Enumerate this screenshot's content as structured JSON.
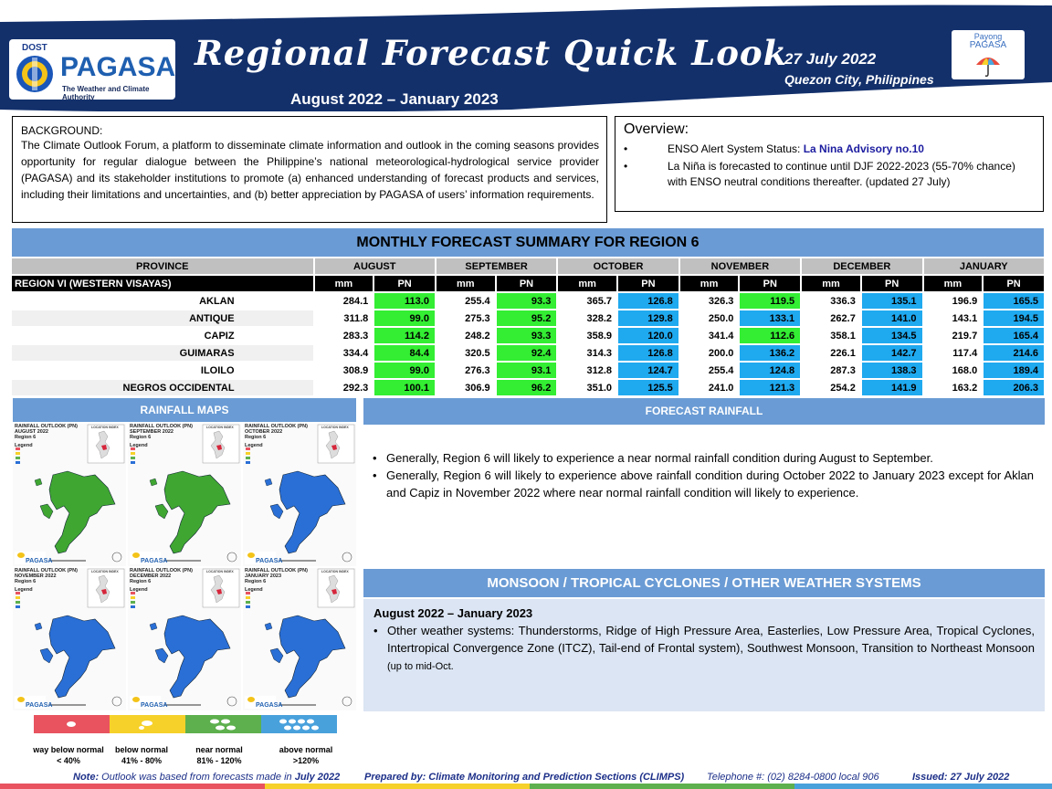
{
  "header": {
    "agency_small": "DOST",
    "agency_name": "PAGASA",
    "agency_tagline": "The Weather and Climate Authority",
    "title": "Regional Forecast Quick Look",
    "period": "August 2022 – January 2023",
    "date": "27 July 2022",
    "place": "Quezon City, Philippines",
    "partner_line1": "Payong",
    "partner_line2": "PAGASA",
    "emblem_icon": "pagasa-emblem-icon",
    "partner_icon": "umbrella-icon",
    "navy_color": "#13306b"
  },
  "background": {
    "heading": "BACKGROUND:",
    "text": "The Climate Outlook Forum, a platform to disseminate climate information and outlook in the coming seasons provides opportunity for regular dialogue between the Philippine’s national meteorological-hydrological service provider (PAGASA) and its stakeholder institutions to promote (a) enhanced understanding of forecast products and services, including their limitations and uncertainties, and (b) better appreciation by PAGASA of users’ information requirements."
  },
  "overview": {
    "heading": "Overview:",
    "item1_prefix": "ENSO Alert System Status: ",
    "item1_highlight": "La Nina Advisory no.10",
    "item2": "La Niña is forecasted to continue until DJF 2022-2023  (55-70% chance) with ENSO neutral conditions thereafter. (updated 27 July)"
  },
  "summary": {
    "title": "MONTHLY FORECAST SUMMARY FOR REGION 6",
    "province_header": "PROVINCE",
    "region_label": "REGION VI (WESTERN VISAYAS)",
    "mm_label": "mm",
    "pn_label": "PN",
    "months": [
      "AUGUST",
      "SEPTEMBER",
      "OCTOBER",
      "NOVEMBER",
      "DECEMBER",
      "JANUARY"
    ],
    "rows": [
      {
        "province": "AKLAN",
        "values": [
          "284.1",
          "113.0",
          "255.4",
          "93.3",
          "365.7",
          "126.8",
          "326.3",
          "119.5",
          "336.3",
          "135.1",
          "196.9",
          "165.5"
        ]
      },
      {
        "province": "ANTIQUE",
        "values": [
          "311.8",
          "99.0",
          "275.3",
          "95.2",
          "328.2",
          "129.8",
          "250.0",
          "133.1",
          "262.7",
          "141.0",
          "143.1",
          "194.5"
        ]
      },
      {
        "province": "CAPIZ",
        "values": [
          "283.3",
          "114.2",
          "248.2",
          "93.3",
          "358.9",
          "120.0",
          "341.4",
          "112.6",
          "358.1",
          "134.5",
          "219.7",
          "165.4"
        ]
      },
      {
        "province": "GUIMARAS",
        "values": [
          "334.4",
          "84.4",
          "320.5",
          "92.4",
          "314.3",
          "126.8",
          "200.0",
          "136.2",
          "226.1",
          "142.7",
          "117.4",
          "214.6"
        ]
      },
      {
        "province": "ILOILO",
        "values": [
          "308.9",
          "99.0",
          "276.3",
          "93.1",
          "312.8",
          "124.7",
          "255.4",
          "124.8",
          "287.3",
          "138.3",
          "168.0",
          "189.4"
        ]
      },
      {
        "province": "NEGROS OCCIDENTAL",
        "values": [
          "292.3",
          "100.1",
          "306.9",
          "96.2",
          "351.0",
          "125.5",
          "241.0",
          "121.3",
          "254.2",
          "141.9",
          "163.2",
          "206.3"
        ]
      }
    ],
    "pn_colors": {
      "near_normal": "#33ee33",
      "above_normal": "#1fa9ef"
    },
    "pn_categories": [
      [
        "near",
        "near",
        "above",
        "near",
        "above",
        "above"
      ],
      [
        "near",
        "near",
        "above",
        "above",
        "above",
        "above"
      ],
      [
        "near",
        "near",
        "above",
        "near",
        "above",
        "above"
      ],
      [
        "near",
        "near",
        "above",
        "above",
        "above",
        "above"
      ],
      [
        "near",
        "near",
        "above",
        "above",
        "above",
        "above"
      ],
      [
        "near",
        "near",
        "above",
        "above",
        "above",
        "above"
      ]
    ]
  },
  "maps": {
    "banner": "RAINFALL MAPS",
    "title_prefix": "RAINFALL OUTLOOK (PN)",
    "region_text": "Region 6",
    "legend_word": "Legend",
    "location_label": "LOCATION INDEX",
    "panels": [
      {
        "month": "AUGUST 2022",
        "fill": "#3fa632"
      },
      {
        "month": "SEPTEMBER 2022",
        "fill": "#3fa632"
      },
      {
        "month": "OCTOBER 2022",
        "fill": "#2a6fd6"
      },
      {
        "month": "NOVEMBER 2022",
        "fill": "#2a6fd6"
      },
      {
        "month": "DECEMBER 2022",
        "fill": "#2a6fd6"
      },
      {
        "month": "JANUARY 2023",
        "fill": "#2a6fd6"
      }
    ],
    "legend": [
      {
        "name": "way below normal",
        "range": "< 40%",
        "color": "#e8535f"
      },
      {
        "name": "below normal",
        "range": "41% -  80%",
        "color": "#f6d12a"
      },
      {
        "name": "near normal",
        "range": "81% - 120%",
        "color": "#5db04d"
      },
      {
        "name": "above normal",
        "range": ">120%",
        "color": "#49a1dc"
      }
    ]
  },
  "forecast": {
    "banner": "FORECAST RAINFALL",
    "bullet1": "Generally, Region 6 will likely to experience a near normal rainfall condition during August to September.",
    "bullet2": "Generally, Region 6 will likely to experience above rainfall condition during October 2022 to January 2023 except for Aklan and Capiz in November  2022 where near normal rainfall condition will likely to experience."
  },
  "monsoon": {
    "banner": "MONSOON / TROPICAL CYCLONES / OTHER WEATHER SYSTEMS",
    "period": "August 2022 – January 2023",
    "text": "Other weather systems: Thunderstorms,  Ridge of High Pressure Area,  Easterlies, Low Pressure Area, Tropical Cyclones, Intertropical Convergence Zone (ITCZ), Tail-end of Frontal system), Southwest Monsoon, Transition to Northeast Monsoon ",
    "text_small": "(up to mid-Oct."
  },
  "footer": {
    "note_label": "Note:",
    "note_text": " Outlook was based from forecasts made in ",
    "note_month": "July 2022",
    "prepared_label": "Prepared by: Climate Monitoring and Prediction Sections (CLIMPS)",
    "telephone": "Telephone #: (02) 8284-0800 local 906",
    "issued": "Issued: 27 July 2022"
  }
}
